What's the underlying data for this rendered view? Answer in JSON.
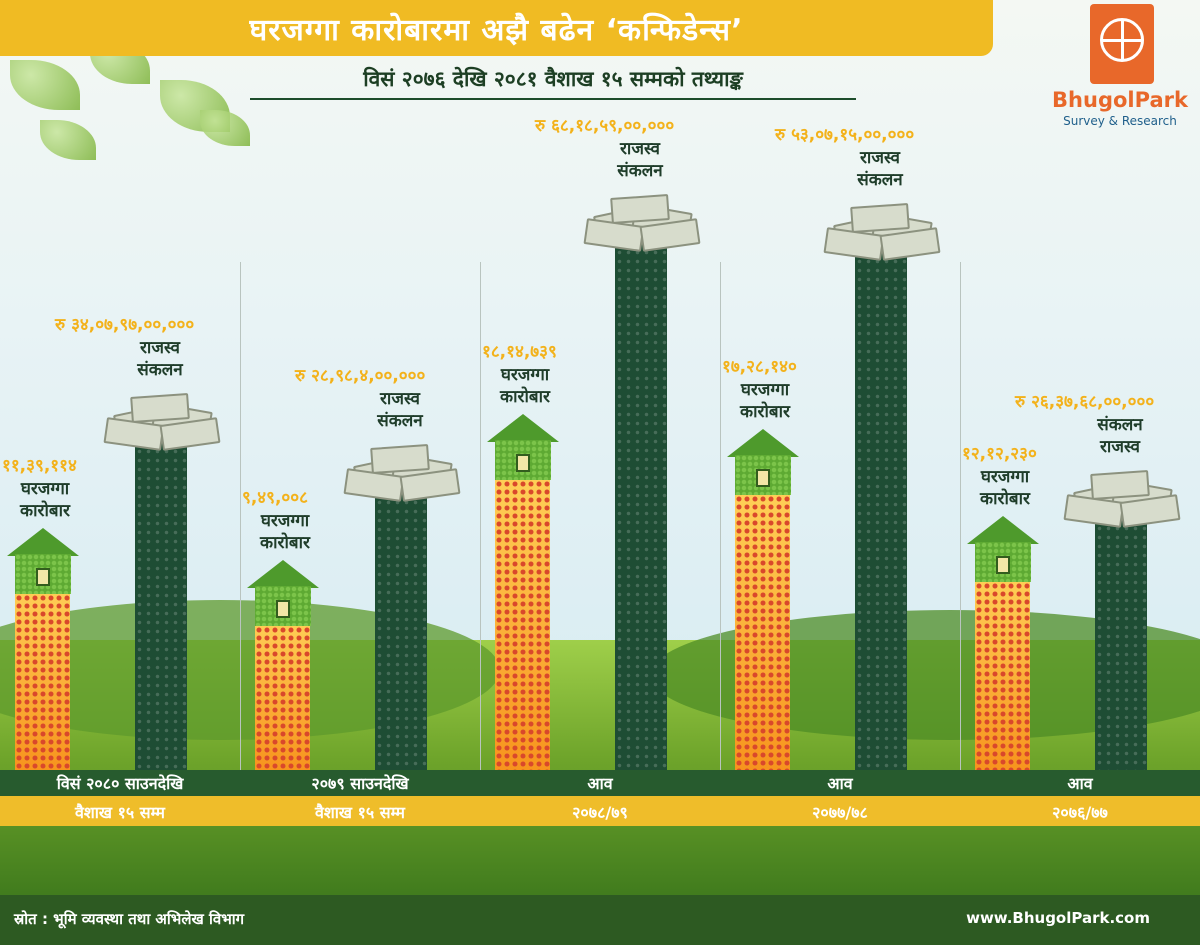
{
  "header": {
    "title": "घरजग्गा कारोबारमा अझै बढेन ‘कन्फिडेन्स’",
    "subtitle": "विसं २०७६ देखि २०८१ वैशाख १५ सम्मको तथ्याङ्क"
  },
  "logo": {
    "name": "BhugolPark",
    "tagline": "Survey & Research"
  },
  "footer": {
    "source": "स्रोत : भूमि व्यवस्था तथा अभिलेख विभाग",
    "website": "www.BhugolPark.com"
  },
  "colors": {
    "accent": "#f0bb23",
    "revenue_bar": "#1e4d34",
    "transaction_bar": "#f7941d",
    "footer": "#2d5a22"
  },
  "chart_data": {
    "type": "bar",
    "title": "घरजग्गा कारोबारमा अझै बढेन ‘कन्फिडेन्स’",
    "subtitle": "विसं २०७६ देखि २०८१ वैशाख १५ सम्मको तथ्याङ्क",
    "groups": [
      {
        "period_line1": "विसं २०८० साउनदेखि",
        "period_line2": "वैशाख १५ सम्म",
        "transactions_label": "११,३९,११४",
        "transactions": 1139114,
        "transactions_name": [
          "घरजग्गा",
          "कारोबार"
        ],
        "revenue_label": "रु ३४,०७,९७,००,०००",
        "revenue": 34079700000,
        "revenue_name": [
          "राजस्व",
          "संकलन"
        ]
      },
      {
        "period_line1": "२०७९ साउनदेखि",
        "period_line2": "वैशाख १५ सम्म",
        "transactions_label": "९,४९,००८",
        "transactions": 949008,
        "transactions_name": [
          "घरजग्गा",
          "कारोबार"
        ],
        "revenue_label": "रु २८,९८,४,००,०००",
        "revenue": 28984000000,
        "revenue_name": [
          "राजस्व",
          "संकलन"
        ]
      },
      {
        "period_line1": "आव",
        "period_line2": "२०७८/७९",
        "transactions_label": "१८,१४,७३९",
        "transactions": 1814739,
        "transactions_name": [
          "घरजग्गा",
          "कारोबार"
        ],
        "revenue_label": "रु ६८,१८,५९,००,०००",
        "revenue": 68185900000,
        "revenue_name": [
          "राजस्व",
          "संकलन"
        ]
      },
      {
        "period_line1": "आव",
        "period_line2": "२०७७/७८",
        "transactions_label": "१७,२८,१४०",
        "transactions": 1728140,
        "transactions_name": [
          "घरजग्गा",
          "कारोबार"
        ],
        "revenue_label": "रु ५३,०७,१५,००,०००",
        "revenue": 53071500000,
        "revenue_name": [
          "राजस्व",
          "संकलन"
        ]
      },
      {
        "period_line1": "आव",
        "period_line2": "२०७६/७७",
        "transactions_label": "१२,१२,२३०",
        "transactions": 1212230,
        "transactions_name": [
          "घरजग्गा",
          "कारोबार"
        ],
        "revenue_label": "रु २६,३७,६८,००,०००",
        "revenue": 26376800000,
        "revenue_name": [
          "संकलन",
          "राजस्व"
        ]
      }
    ]
  }
}
